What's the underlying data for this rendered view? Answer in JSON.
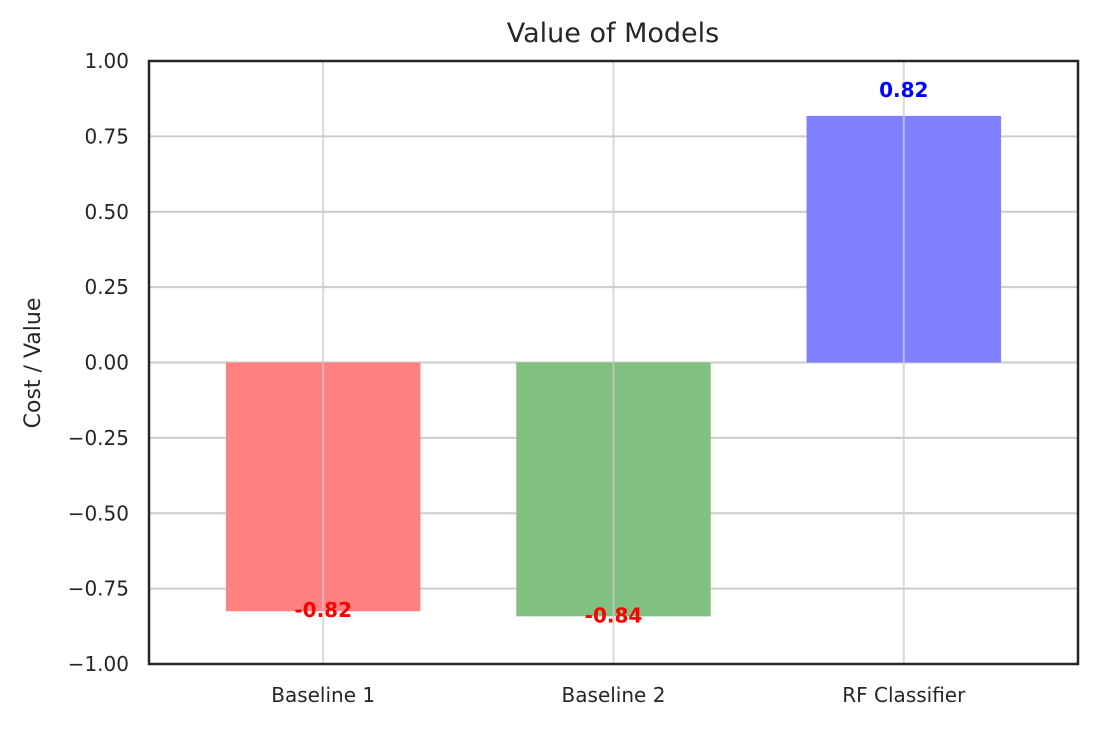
{
  "chart_data": {
    "type": "bar",
    "title": "Value of Models",
    "xlabel": "",
    "ylabel": "Cost / Value",
    "categories": [
      "Baseline 1",
      "Baseline 2",
      "RF Classifier"
    ],
    "values": [
      -0.825,
      -0.842,
      0.818
    ],
    "data_labels": [
      "-0.82",
      "-0.84",
      "0.82"
    ],
    "colors": [
      "#ff8080",
      "#80c080",
      "#8080ff"
    ],
    "label_colors": [
      "#ff0000",
      "#ff0000",
      "#0000ff"
    ],
    "ylim": [
      -1.0,
      1.0
    ],
    "yticks": [
      -1.0,
      -0.75,
      -0.5,
      -0.25,
      0.0,
      0.25,
      0.5,
      0.75,
      1.0
    ],
    "ytick_labels": [
      "−1.00",
      "−0.75",
      "−0.50",
      "−0.25",
      "0.00",
      "0.25",
      "0.50",
      "0.75",
      "1.00"
    ],
    "grid": true,
    "legend": "none"
  }
}
